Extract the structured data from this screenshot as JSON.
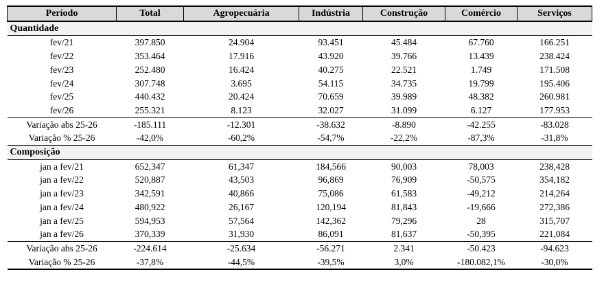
{
  "colors": {
    "page_bg": "#ffffff",
    "header_bg": "#d9d9d9",
    "section_bg": "#f2f2f2",
    "border": "#000000"
  },
  "table": {
    "columns": [
      "Período",
      "Total",
      "Agropecuária",
      "Indústria",
      "Construção",
      "Comércio",
      "Serviços"
    ],
    "sections": [
      {
        "label": "Quantidade",
        "rows": [
          {
            "period": "fev/21",
            "values": [
              "397.850",
              "24.904",
              "93.451",
              "45.484",
              "67.760",
              "166.251"
            ]
          },
          {
            "period": "fev/22",
            "values": [
              "353.464",
              "17.916",
              "43.920",
              "39.766",
              "13.439",
              "238.424"
            ]
          },
          {
            "period": "fev/23",
            "values": [
              "252.480",
              "16.424",
              "40.275",
              "22.521",
              "1.749",
              "171.508"
            ]
          },
          {
            "period": "fev/24",
            "values": [
              "307.748",
              "3.695",
              "54.115",
              "34.735",
              "19.799",
              "195.406"
            ]
          },
          {
            "period": "fev/25",
            "values": [
              "440.432",
              "20.424",
              "70.659",
              "39.989",
              "48.382",
              "260.981"
            ]
          },
          {
            "period": "fev/26",
            "values": [
              "255.321",
              "8.123",
              "32.027",
              "31.099",
              "6.127",
              "177.953"
            ]
          }
        ],
        "summary": [
          {
            "period": "Variação abs 25-26",
            "values": [
              "-185.111",
              "-12.301",
              "-38.632",
              "-8.890",
              "-42.255",
              "-83.028"
            ]
          },
          {
            "period": "Variação % 25-26",
            "values": [
              "-42,0%",
              "-60,2%",
              "-54,7%",
              "-22,2%",
              "-87,3%",
              "-31,8%"
            ]
          }
        ]
      },
      {
        "label": "Composição",
        "rows": [
          {
            "period": "jan a fev/21",
            "values": [
              "652,347",
              "61,347",
              "184,566",
              "90,003",
              "78,003",
              "238,428"
            ]
          },
          {
            "period": "jan a fev/22",
            "values": [
              "520,887",
              "43,503",
              "96,869",
              "76,909",
              "-50,575",
              "354,182"
            ]
          },
          {
            "period": "jan a fev/23",
            "values": [
              "342,591",
              "40,866",
              "75,086",
              "61,583",
              "-49,212",
              "214,264"
            ]
          },
          {
            "period": "jan a fev/24",
            "values": [
              "480,922",
              "26,167",
              "120,194",
              "81,843",
              "-19,666",
              "272,386"
            ]
          },
          {
            "period": "jan a fev/25",
            "values": [
              "594,953",
              "57,564",
              "142,362",
              "79,296",
              "28",
              "315,707"
            ]
          },
          {
            "period": "jan a fev/26",
            "values": [
              "370,339",
              "31,930",
              "86,091",
              "81,637",
              "-50,395",
              "221,084"
            ]
          }
        ],
        "summary": [
          {
            "period": "Variação abs 25-26",
            "values": [
              "-224.614",
              "-25.634",
              "-56.271",
              "2.341",
              "-50.423",
              "-94.623"
            ]
          },
          {
            "period": "Variação % 25-26",
            "values": [
              "-37,8%",
              "-44,5%",
              "-39,5%",
              "3,0%",
              "-180.082,1%",
              "-30,0%"
            ]
          }
        ]
      }
    ]
  }
}
